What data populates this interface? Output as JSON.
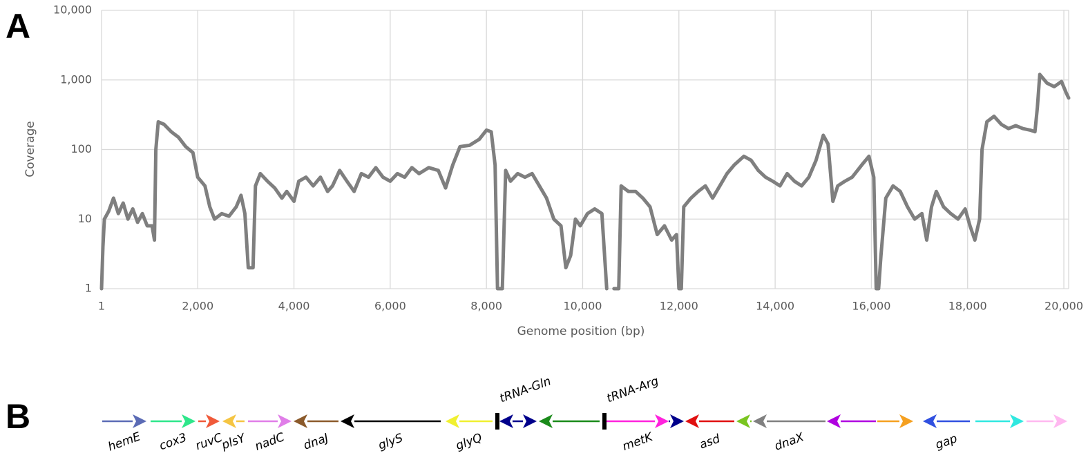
{
  "panel_labels": [
    "A",
    "B"
  ],
  "chart_data": {
    "type": "line",
    "ylabel": "Coverage",
    "xlabel": "Genome position (bp)",
    "yscale": "log",
    "grid": true,
    "color": "#7f7f7f",
    "xlim": [
      1,
      20100
    ],
    "ylim": [
      1,
      10000
    ],
    "xticks": [
      1,
      {
        "value": 2000,
        "label": "2,000"
      },
      {
        "value": 4000,
        "label": "4,000"
      },
      {
        "value": 6000,
        "label": "6,000"
      },
      {
        "value": 8000,
        "label": "8,000"
      },
      {
        "value": 10000,
        "label": "10,000"
      },
      {
        "value": 12000,
        "label": "12,000"
      },
      {
        "value": 14000,
        "label": "14,000"
      },
      {
        "value": 16000,
        "label": "16,000"
      },
      {
        "value": 18000,
        "label": "18,000"
      },
      {
        "value": 20000,
        "label": "20,000"
      }
    ],
    "yticks": [
      1,
      10,
      100,
      {
        "value": 1000,
        "label": "1,000"
      },
      {
        "value": 10000,
        "label": "10,000"
      }
    ],
    "x": [
      1,
      30,
      60,
      150,
      250,
      350,
      450,
      550,
      650,
      750,
      850,
      950,
      1050,
      1100,
      1130,
      1180,
      1300,
      1450,
      1600,
      1750,
      1900,
      2000,
      2150,
      2250,
      2350,
      2500,
      2650,
      2800,
      2900,
      2980,
      3050,
      3150,
      3200,
      3300,
      3450,
      3600,
      3750,
      3850,
      4000,
      4100,
      4250,
      4400,
      4550,
      4700,
      4800,
      4950,
      5100,
      5250,
      5400,
      5550,
      5700,
      5850,
      6000,
      6150,
      6300,
      6450,
      6600,
      6800,
      7000,
      7150,
      7300,
      7450,
      7650,
      7850,
      8000,
      8100,
      8180,
      8230,
      8330,
      8400,
      8500,
      8650,
      8800,
      8950,
      9100,
      9250,
      9400,
      9550,
      9650,
      9750,
      9850,
      9950,
      10100,
      10250,
      10400,
      10500,
      10550,
      10650,
      10750,
      10800,
      10950,
      11100,
      11250,
      11400,
      11550,
      11700,
      11850,
      11950,
      12000,
      12050,
      12100,
      12250,
      12400,
      12550,
      12700,
      12850,
      13000,
      13150,
      13350,
      13500,
      13650,
      13800,
      13950,
      14100,
      14250,
      14400,
      14550,
      14700,
      14850,
      15000,
      15100,
      15200,
      15300,
      15450,
      15600,
      15800,
      15950,
      16050,
      16100,
      16150,
      16200,
      16300,
      16450,
      16600,
      16750,
      16900,
      17050,
      17150,
      17250,
      17350,
      17500,
      17650,
      17800,
      17950,
      18050,
      18150,
      18250,
      18300,
      18400,
      18550,
      18700,
      18850,
      19000,
      19150,
      19300,
      19400,
      19450,
      19500,
      19650,
      19800,
      19950,
      20050,
      20100
    ],
    "values": [
      1,
      4,
      10,
      13,
      20,
      12,
      17,
      10,
      14,
      9,
      12,
      8,
      8,
      5,
      100,
      250,
      230,
      180,
      150,
      110,
      90,
      40,
      30,
      15,
      10,
      12,
      11,
      15,
      22,
      12,
      2,
      2,
      30,
      45,
      35,
      28,
      20,
      25,
      18,
      35,
      40,
      30,
      40,
      25,
      30,
      50,
      35,
      25,
      45,
      40,
      55,
      40,
      35,
      45,
      40,
      55,
      45,
      55,
      50,
      28,
      60,
      110,
      115,
      140,
      190,
      180,
      60,
      1,
      1,
      50,
      35,
      45,
      40,
      45,
      30,
      20,
      10,
      8,
      2,
      3,
      10,
      8,
      12,
      14,
      12,
      1,
      null,
      1,
      1,
      30,
      25,
      25,
      20,
      15,
      6,
      8,
      5,
      6,
      1,
      1,
      15,
      20,
      25,
      30,
      20,
      30,
      45,
      60,
      80,
      70,
      50,
      40,
      35,
      30,
      45,
      35,
      30,
      40,
      70,
      160,
      120,
      18,
      30,
      35,
      40,
      60,
      80,
      40,
      1,
      1,
      3,
      20,
      30,
      25,
      15,
      10,
      12,
      5,
      15,
      25,
      15,
      12,
      10,
      14,
      8,
      5,
      10,
      100,
      250,
      300,
      230,
      200,
      220,
      200,
      190,
      180,
      400,
      1200,
      900,
      800,
      950,
      650,
      550
    ]
  },
  "gene_map": {
    "genes": [
      {
        "label": "hemE",
        "color": "#5b6bb5",
        "direction": "right"
      },
      {
        "label": "cox3",
        "color": "#2ee68a",
        "direction": "right"
      },
      {
        "label": "ruvC",
        "color": "#f05a3a",
        "direction": "right"
      },
      {
        "label": "plsY",
        "color": "#f5c542",
        "direction": "left"
      },
      {
        "label": "nadC",
        "color": "#e07ee8",
        "direction": "right"
      },
      {
        "label": "dnaJ",
        "color": "#8b5a2b",
        "direction": "left"
      },
      {
        "label": "glyS",
        "color": "#000000",
        "direction": "left"
      },
      {
        "label": "glyQ",
        "color": "#f0f030",
        "direction": "left"
      },
      {
        "label": "tRNA-Gln",
        "color": "#000000",
        "shape": "bar"
      },
      {
        "color": "#00008b",
        "direction": "left"
      },
      {
        "color": "#00008b",
        "direction": "right"
      },
      {
        "color": "#1a8a1a",
        "direction": "left"
      },
      {
        "label": "tRNA-Arg",
        "color": "#000000",
        "shape": "bar"
      },
      {
        "label": "metK",
        "color": "#ff22dd",
        "direction": "right"
      },
      {
        "color": "#00008b",
        "direction": "right"
      },
      {
        "label": "asd",
        "color": "#e01010",
        "direction": "left"
      },
      {
        "color": "#7ac520",
        "direction": "left"
      },
      {
        "label": "dnaX",
        "color": "#808080",
        "direction": "left"
      },
      {
        "color": "#b000e0",
        "direction": "left"
      },
      {
        "color": "#f5a020",
        "direction": "right"
      },
      {
        "label": "gap",
        "color": "#3050e0",
        "direction": "left"
      },
      {
        "color": "#30e8e0",
        "direction": "right"
      },
      {
        "color": "#ffb8f0",
        "direction": "right"
      }
    ]
  }
}
